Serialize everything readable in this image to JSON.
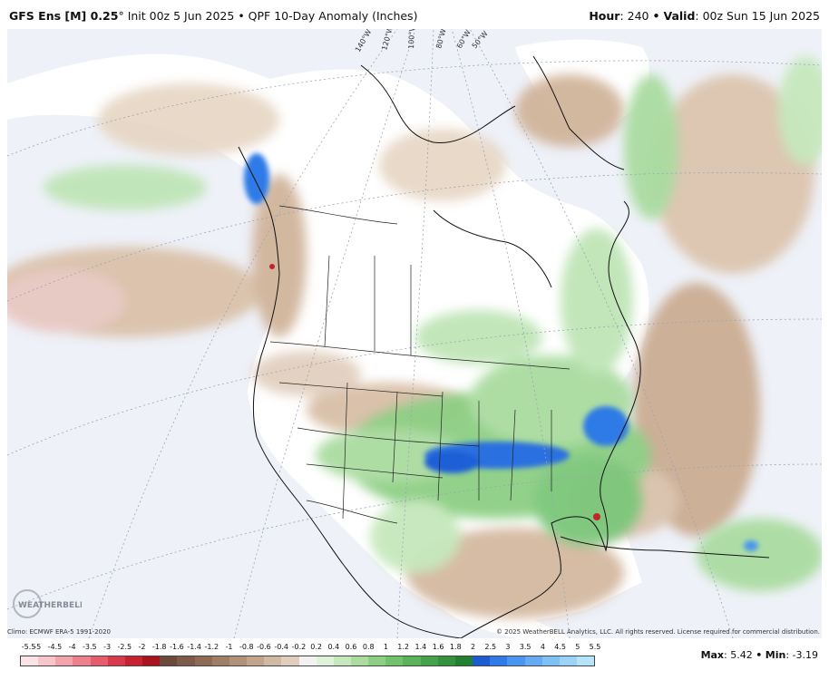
{
  "header": {
    "model": "GFS Ens [M] 0.25",
    "degree_mark": "°",
    "init": "Init 00z 5 Jun 2025",
    "bullet": "•",
    "product": "QPF 10-Day Anomaly (Inches)",
    "hour_label": "Hour",
    "hour_value": ": 240",
    "valid_label": "Valid",
    "valid_value": ": 00z Sun 15 Jun 2025"
  },
  "map": {
    "longitude_labels": [
      "140°W",
      "120°W",
      "100°W",
      "80°W",
      "60°W",
      "50°W"
    ],
    "logo_text": "WEATHERBELL",
    "colors": {
      "ocean": "#eef1f8",
      "land_base": "#ffffff",
      "dry_light": "#e6d5c3",
      "dry_mid": "#cfb196",
      "dry_strong": "#b48e70",
      "wet_light": "#bfe5b7",
      "wet_mid": "#7cc77a",
      "wet_strong": "#3a9e45",
      "very_wet": "#1f5fd6",
      "extreme": "#c0272d"
    }
  },
  "footer": {
    "climo": "Climo: ECMWF ERA-5 1991-2020",
    "copyright": "© 2025 WeatherBELL Analytics, LLC. All rights reserved. License required for commercial distribution.",
    "max_label": "Max",
    "max_value": ": 5.42",
    "bullet": "•",
    "min_label": "Min",
    "min_value": ": -3.19"
  },
  "legend": {
    "labels": [
      "-5.5",
      "-5",
      "-4.5",
      "-4",
      "-3.5",
      "-3",
      "-2.5",
      "-2",
      "-1.8",
      "-1.6",
      "-1.4",
      "-1.2",
      "-1",
      "-0.8",
      "-0.6",
      "-0.4",
      "-0.2",
      "0.2",
      "0.4",
      "0.6",
      "0.8",
      "1",
      "1.2",
      "1.4",
      "1.6",
      "1.8",
      "2",
      "2.5",
      "3",
      "3.5",
      "4",
      "4.5",
      "5",
      "5.5"
    ],
    "colors": [
      "#fbe3e6",
      "#f7c6cb",
      "#f2a4ad",
      "#ec818d",
      "#e35d6d",
      "#d63a4c",
      "#c52232",
      "#a8141f",
      "#6b4a3c",
      "#7d5a49",
      "#8f6b57",
      "#a07d67",
      "#b19179",
      "#c2a48c",
      "#d1b8a3",
      "#e0cdbc",
      "#f2f2f2",
      "#dff2da",
      "#c6e8bd",
      "#aadca0",
      "#8dcf84",
      "#72c16c",
      "#5cb25a",
      "#46a24a",
      "#34913d",
      "#238032",
      "#1c5cd0",
      "#2f7ae6",
      "#4a95ef",
      "#66abf2",
      "#80c1f5",
      "#9ad3f7",
      "#b5e3fa"
    ]
  }
}
